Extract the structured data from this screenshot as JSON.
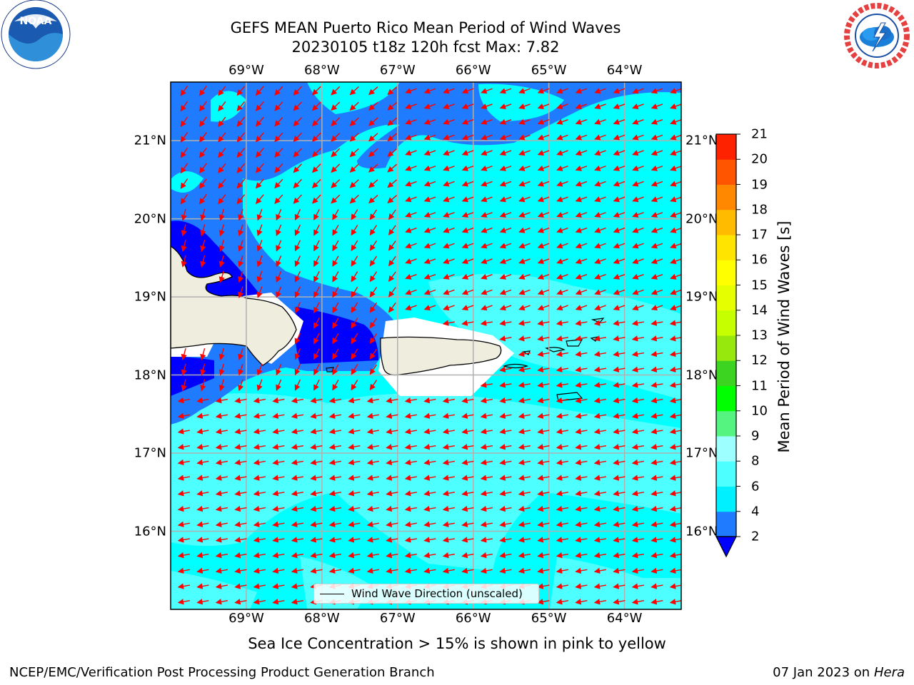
{
  "title": {
    "line1": "GEFS MEAN Puerto Rico Mean Period of Wind Waves",
    "line2": "20230105 t18z 120h fcst   Max: 7.82"
  },
  "logos": {
    "left": {
      "name": "noaa-logo",
      "text": "NOAA",
      "ring_text": "NATIONAL OCEANIC AND ATMOSPHERIC ADMINISTRATION · U.S. DEPARTMENT OF COMMERCE"
    },
    "right": {
      "name": "nws-logo",
      "ring_text": "NATIONAL WEATHER SERVICE"
    }
  },
  "map": {
    "lon_range": [
      -70.0,
      -63.25
    ],
    "lat_range": [
      15.0,
      21.75
    ],
    "lon_ticks": [
      {
        "value": -69,
        "label": "69°W"
      },
      {
        "value": -68,
        "label": "68°W"
      },
      {
        "value": -67,
        "label": "67°W"
      },
      {
        "value": -66,
        "label": "66°W"
      },
      {
        "value": -65,
        "label": "65°W"
      },
      {
        "value": -64,
        "label": "64°W"
      }
    ],
    "lat_ticks": [
      {
        "value": 21,
        "label": "21°N"
      },
      {
        "value": 20,
        "label": "20°N"
      },
      {
        "value": 19,
        "label": "19°N"
      },
      {
        "value": 18,
        "label": "18°N"
      },
      {
        "value": 17,
        "label": "17°N"
      },
      {
        "value": 16,
        "label": "16°N"
      }
    ],
    "grid": true,
    "land_color": "#efedde",
    "arrow_color": "#ff0000",
    "contour_colors": {
      "2-4": "#1f7bff",
      "4-6": "#00ffff",
      "6-8": "#4dffff",
      "below_2": "#0000ff"
    },
    "legend_label": "Wind Wave Direction (unscaled)"
  },
  "colorbar": {
    "label": "Mean Period of Wind Waves [s]",
    "ticks": [
      2,
      4,
      6,
      8,
      9,
      10,
      11,
      12,
      13,
      14,
      15,
      16,
      17,
      18,
      19,
      20,
      21
    ],
    "colors": [
      "#1f7bff",
      "#00f0ff",
      "#4dffff",
      "#9dffff",
      "#55f37f",
      "#00ff00",
      "#3dd421",
      "#96e80d",
      "#c6ff00",
      "#e5ff00",
      "#ffff00",
      "#ffe400",
      "#ffbb00",
      "#ff8800",
      "#ff5500",
      "#ff2200"
    ],
    "extend_color": "#0000ff"
  },
  "note": "Sea Ice Concentration > 15% is shown in pink to yellow",
  "footer": {
    "left": "NCEP/EMC/Verification Post Processing Product Generation Branch",
    "right_date": "07 Jan 2023 on ",
    "right_host": "Hera"
  }
}
